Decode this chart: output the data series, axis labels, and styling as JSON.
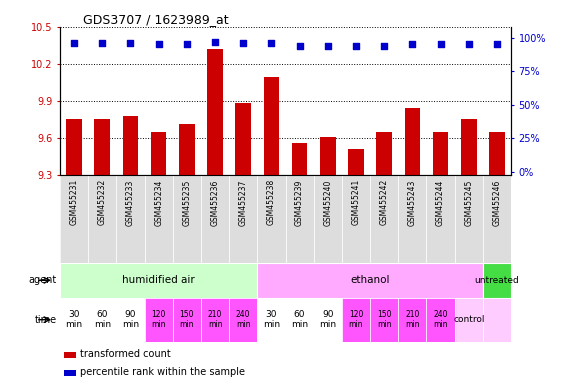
{
  "title": "GDS3707 / 1623989_at",
  "samples": [
    "GSM455231",
    "GSM455232",
    "GSM455233",
    "GSM455234",
    "GSM455235",
    "GSM455236",
    "GSM455237",
    "GSM455238",
    "GSM455239",
    "GSM455240",
    "GSM455241",
    "GSM455242",
    "GSM455243",
    "GSM455244",
    "GSM455245",
    "GSM455246"
  ],
  "bar_values": [
    9.75,
    9.75,
    9.78,
    9.65,
    9.71,
    10.32,
    9.88,
    10.09,
    9.56,
    9.61,
    9.51,
    9.65,
    9.84,
    9.65,
    9.75,
    9.65
  ],
  "percentile_values": [
    96,
    96,
    96,
    95,
    95,
    97,
    96,
    96,
    94,
    94,
    94,
    94,
    95,
    95,
    95,
    95
  ],
  "bar_color": "#cc0000",
  "percentile_color": "#0000cc",
  "bar_bottom": 9.3,
  "ylim": [
    9.3,
    10.5
  ],
  "yticks_left": [
    9.3,
    9.6,
    9.9,
    10.2,
    10.5
  ],
  "yticks_right": [
    0,
    25,
    50,
    75,
    100
  ],
  "ytick_right_labels": [
    "0%",
    "25%",
    "50%",
    "75%",
    "100%"
  ],
  "agent_groups": [
    {
      "label": "humidified air",
      "start": 0,
      "end": 7,
      "color": "#ccffcc"
    },
    {
      "label": "ethanol",
      "start": 7,
      "end": 15,
      "color": "#ffaaff"
    },
    {
      "label": "untreated",
      "start": 15,
      "end": 16,
      "color": "#44dd44"
    }
  ],
  "time_colors_per_bar": [
    "white",
    "white",
    "white",
    "#ff55ff",
    "#ff55ff",
    "#ff55ff",
    "#ff55ff",
    "white",
    "white",
    "white",
    "#ff55ff",
    "#ff55ff",
    "#ff55ff",
    "#ff55ff",
    "#ffccff",
    "#ffccff"
  ],
  "time_text_per_bar": [
    "30\nmin",
    "60\nmin",
    "90\nmin",
    "120\nmin",
    "150\nmin",
    "210\nmin",
    "240\nmin",
    "30\nmin",
    "60\nmin",
    "90\nmin",
    "120\nmin",
    "150\nmin",
    "210\nmin",
    "240\nmin",
    "control",
    ""
  ],
  "legend_bar_label": "transformed count",
  "legend_pct_label": "percentile rank within the sample",
  "bg_color": "white"
}
